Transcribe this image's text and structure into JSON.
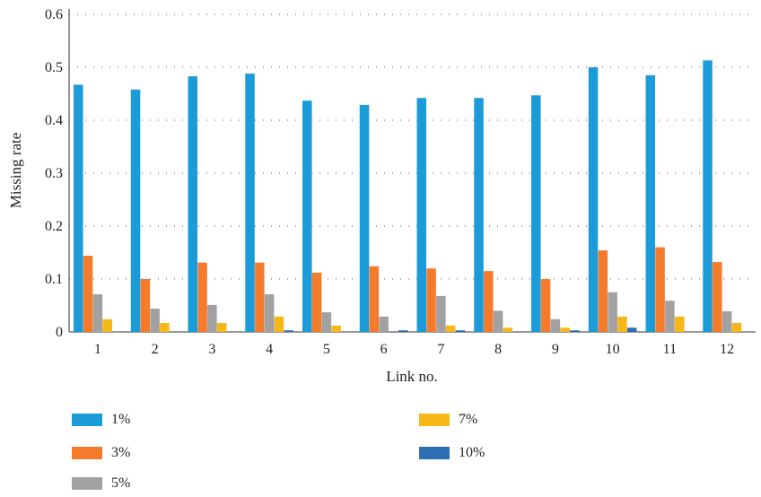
{
  "chart_data": {
    "type": "bar",
    "xlabel": "Link no.",
    "ylabel": "Missing rate",
    "ylim": [
      0,
      0.6
    ],
    "yticks": [
      "0",
      "0.1",
      "0.2",
      "0.3",
      "0.4",
      "0.5",
      "0.6"
    ],
    "grid": "horizontal dotted",
    "legend_position": "bottom",
    "categories": [
      "1",
      "2",
      "3",
      "4",
      "5",
      "6",
      "7",
      "8",
      "9",
      "10",
      "11",
      "12"
    ],
    "series": [
      {
        "name": "1%",
        "color": "#1B9BD7",
        "values": [
          0.467,
          0.458,
          0.483,
          0.488,
          0.437,
          0.429,
          0.442,
          0.442,
          0.447,
          0.5,
          0.485,
          0.513
        ]
      },
      {
        "name": "3%",
        "color": "#F47B2C",
        "values": [
          0.144,
          0.1,
          0.131,
          0.131,
          0.112,
          0.124,
          0.12,
          0.115,
          0.1,
          0.154,
          0.16,
          0.132
        ]
      },
      {
        "name": "5%",
        "color": "#A1A1A1",
        "values": [
          0.071,
          0.044,
          0.051,
          0.071,
          0.037,
          0.029,
          0.068,
          0.04,
          0.024,
          0.075,
          0.059,
          0.039
        ]
      },
      {
        "name": "7%",
        "color": "#F7B718",
        "values": [
          0.024,
          0.017,
          0.017,
          0.029,
          0.012,
          0.0,
          0.012,
          0.008,
          0.008,
          0.029,
          0.029,
          0.017
        ]
      },
      {
        "name": "10%",
        "color": "#2D6EB5",
        "values": [
          0.0,
          0.0,
          0.0,
          0.003,
          0.0,
          0.003,
          0.003,
          0.0,
          0.003,
          0.008,
          0.0,
          0.0
        ]
      }
    ]
  }
}
